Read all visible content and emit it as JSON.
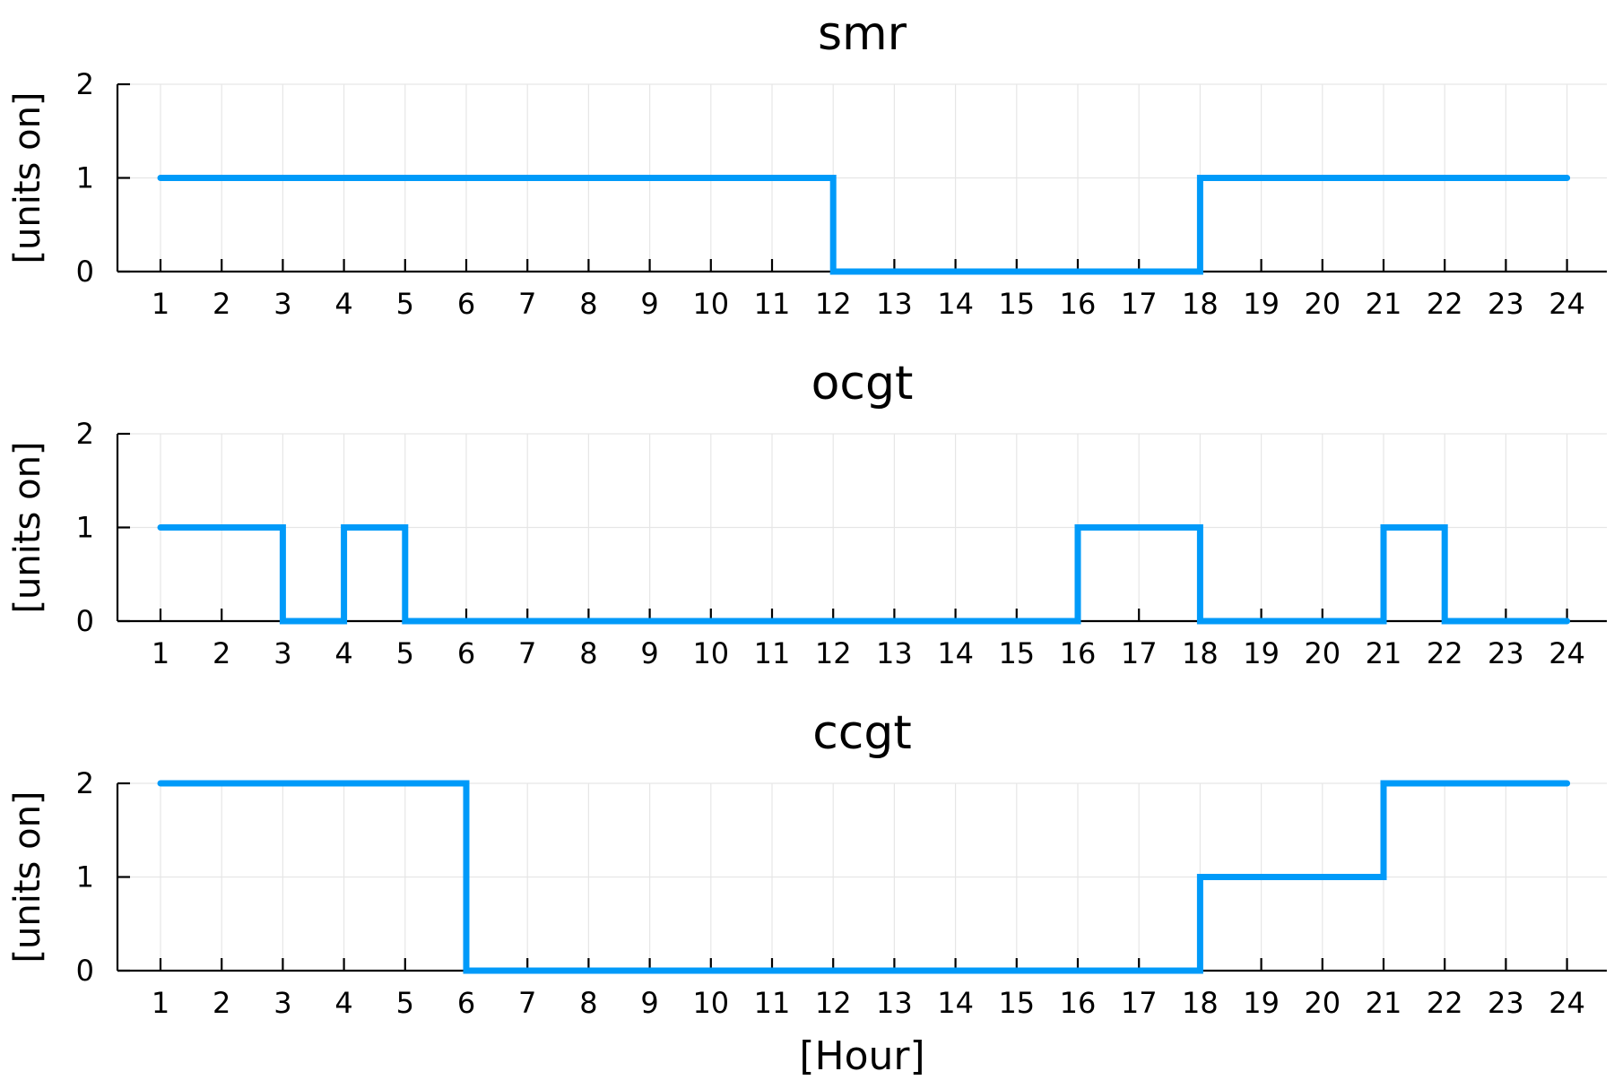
{
  "chart_data": [
    {
      "type": "line",
      "step": "post",
      "title": "smr",
      "ylabel": "[units on]",
      "xlabel": "",
      "ylim": [
        0,
        2
      ],
      "yticks": [
        "0",
        "1",
        "2"
      ],
      "categories": [
        "1",
        "2",
        "3",
        "4",
        "5",
        "6",
        "7",
        "8",
        "9",
        "10",
        "11",
        "12",
        "13",
        "14",
        "15",
        "16",
        "17",
        "18",
        "19",
        "20",
        "21",
        "22",
        "23",
        "24"
      ],
      "series": [
        {
          "name": "smr",
          "color": "#009af9",
          "values": [
            1,
            1,
            1,
            1,
            1,
            1,
            1,
            1,
            1,
            1,
            1,
            0,
            0,
            0,
            0,
            0,
            0,
            1,
            1,
            1,
            1,
            1,
            1,
            1
          ]
        }
      ]
    },
    {
      "type": "line",
      "step": "post",
      "title": "ocgt",
      "ylabel": "[units on]",
      "xlabel": "",
      "ylim": [
        0,
        2
      ],
      "yticks": [
        "0",
        "1",
        "2"
      ],
      "categories": [
        "1",
        "2",
        "3",
        "4",
        "5",
        "6",
        "7",
        "8",
        "9",
        "10",
        "11",
        "12",
        "13",
        "14",
        "15",
        "16",
        "17",
        "18",
        "19",
        "20",
        "21",
        "22",
        "23",
        "24"
      ],
      "series": [
        {
          "name": "ocgt",
          "color": "#009af9",
          "values": [
            1,
            1,
            0,
            1,
            0,
            0,
            0,
            0,
            0,
            0,
            0,
            0,
            0,
            0,
            0,
            1,
            1,
            0,
            0,
            0,
            1,
            0,
            0,
            0
          ]
        }
      ]
    },
    {
      "type": "line",
      "step": "post",
      "title": "ccgt",
      "ylabel": "[units on]",
      "xlabel": "[Hour]",
      "ylim": [
        0,
        2
      ],
      "yticks": [
        "0",
        "1",
        "2"
      ],
      "categories": [
        "1",
        "2",
        "3",
        "4",
        "5",
        "6",
        "7",
        "8",
        "9",
        "10",
        "11",
        "12",
        "13",
        "14",
        "15",
        "16",
        "17",
        "18",
        "19",
        "20",
        "21",
        "22",
        "23",
        "24"
      ],
      "series": [
        {
          "name": "ccgt",
          "color": "#009af9",
          "values": [
            2,
            2,
            2,
            2,
            2,
            0,
            0,
            0,
            0,
            0,
            0,
            0,
            0,
            0,
            0,
            0,
            0,
            1,
            1,
            1,
            2,
            2,
            2,
            2
          ]
        }
      ]
    }
  ]
}
